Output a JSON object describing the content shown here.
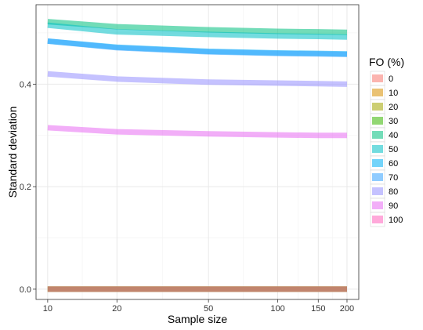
{
  "chart_data": {
    "type": "line",
    "xlabel": "Sample size",
    "ylabel": "Standard deviation",
    "x_scale": "log",
    "x": [
      10,
      20,
      50,
      100,
      150,
      200
    ],
    "xticks": [
      10,
      20,
      50,
      100,
      150,
      200
    ],
    "xtick_labels": [
      "10",
      "20",
      "50",
      "100",
      "150",
      "200"
    ],
    "yticks": [
      0.0,
      0.2,
      0.4
    ],
    "ytick_labels": [
      "0.0",
      "0.2",
      "0.4"
    ],
    "ylim": [
      -0.02,
      0.555
    ],
    "grid": true,
    "legend": {
      "title": "FO (%)",
      "position": "right"
    },
    "series": [
      {
        "name": "0",
        "color": "#F8766D",
        "values": [
          0.0,
          0.0,
          0.0,
          0.0,
          0.0,
          0.0
        ]
      },
      {
        "name": "10",
        "color": "#D89000",
        "values": [
          0.0,
          0.0,
          0.0,
          0.0,
          0.0,
          0.0
        ]
      },
      {
        "name": "20",
        "color": "#A3A500",
        "values": [
          0.0,
          0.0,
          0.0,
          0.0,
          0.0,
          0.0
        ]
      },
      {
        "name": "30",
        "color": "#39B600",
        "values": [
          0.0,
          0.0,
          0.0,
          0.0,
          0.0,
          0.0
        ]
      },
      {
        "name": "40",
        "color": "#00BF7D",
        "values": [
          0.522,
          0.512,
          0.506,
          0.503,
          0.502,
          0.501
        ]
      },
      {
        "name": "50",
        "color": "#00BFC4",
        "values": [
          0.515,
          0.502,
          0.497,
          0.494,
          0.493,
          0.492
        ]
      },
      {
        "name": "60",
        "color": "#00B0F6",
        "values": [
          0.484,
          0.472,
          0.464,
          0.461,
          0.46,
          0.459
        ]
      },
      {
        "name": "70",
        "color": "#35A2FF",
        "values": [
          0.484,
          0.471,
          0.463,
          0.46,
          0.459,
          0.458
        ]
      },
      {
        "name": "80",
        "color": "#9590FF",
        "values": [
          0.42,
          0.41,
          0.404,
          0.402,
          0.401,
          0.4
        ]
      },
      {
        "name": "90",
        "color": "#E76BF3",
        "values": [
          0.315,
          0.307,
          0.303,
          0.301,
          0.3,
          0.3
        ]
      },
      {
        "name": "100",
        "color": "#FF62BC",
        "values": [
          0.0,
          0.0,
          0.0,
          0.0,
          0.0,
          0.0
        ]
      }
    ]
  }
}
